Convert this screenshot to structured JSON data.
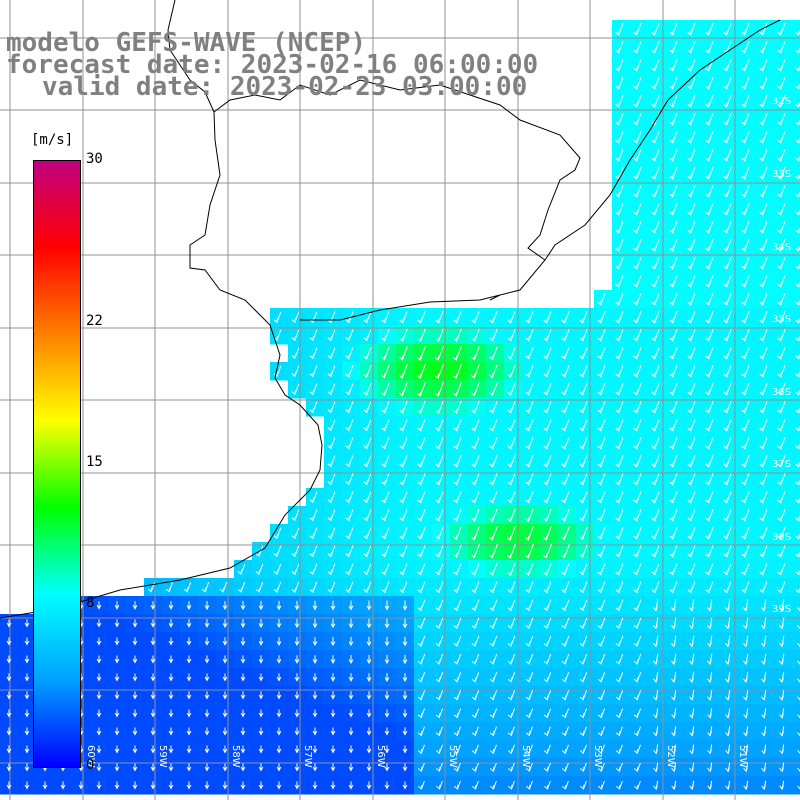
{
  "title": {
    "line1": "modelo GEFS-WAVE (NCEP)",
    "line2": "forecast date: 2023-02-16 06:00:00",
    "line3": "valid date: 2023-02-23 03:00:00"
  },
  "colorbar": {
    "unit": "[m/s]",
    "min": 0,
    "max": 30,
    "ticks": [
      {
        "value": 30,
        "label": "30"
      },
      {
        "value": 22,
        "label": "22"
      },
      {
        "value": 15,
        "label": "15"
      },
      {
        "value": 8,
        "label": "8"
      },
      {
        "value": 0,
        "label": "0"
      }
    ],
    "colors": [
      "#0000ff",
      "#00a0ff",
      "#00ffff",
      "#00ff00",
      "#ffff00",
      "#ff8000",
      "#ff0000",
      "#c00080"
    ]
  },
  "map": {
    "lat_labels": [
      "32S",
      "33S",
      "34S",
      "35S",
      "36S",
      "37S",
      "38S",
      "39S"
    ],
    "lon_labels": [
      "60W",
      "59W",
      "58W",
      "57W",
      "56W",
      "55W",
      "54W",
      "53W",
      "52W",
      "51W"
    ],
    "land_color": "#ffffff",
    "gridline_color": "#909090",
    "coastline_color": "#000000",
    "arrow_color": "#ffffff"
  },
  "chart_data": {
    "type": "heatmap",
    "variable": "wind speed",
    "unit": "m/s",
    "vmin": 0,
    "vmax": 30,
    "lat_range": [
      "40S",
      "31S"
    ],
    "lon_range": [
      "61W",
      "50W"
    ],
    "dominant_wind_direction": "from NE (arrows pointing SW) over offshore waters",
    "max_speed_region": "approx. 12-13 m/s south-east of the Rio de la Plata estuary",
    "min_speed_region": "approx. 2-4 m/s along the southern Buenos Aires coast"
  }
}
